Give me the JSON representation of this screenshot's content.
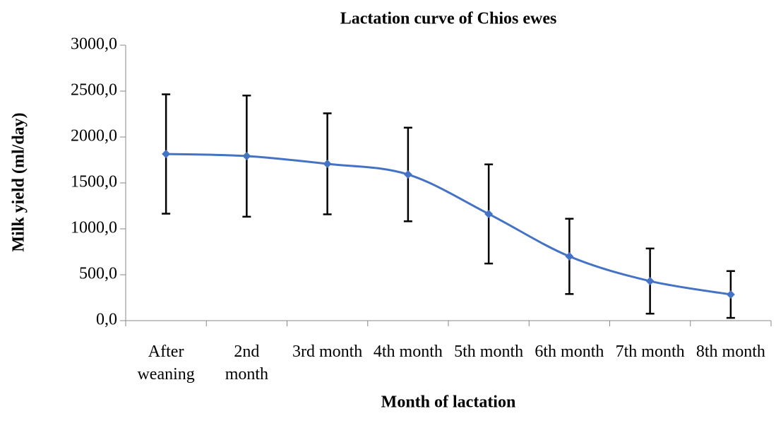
{
  "chart_data": {
    "type": "line",
    "title": "Lactation curve of Chios ewes",
    "x_label": "Month of lactation",
    "y_label": "Milk yield (ml/day)",
    "categories": [
      "After weaning",
      "2nd month",
      "3rd month",
      "4th month",
      "5th month",
      "6th month",
      "7th month",
      "8th month"
    ],
    "series": [
      {
        "name": "Milk yield",
        "color": "#4472c4",
        "values": [
          1815,
          1792,
          1708,
          1592,
          1162,
          700,
          431,
          285
        ],
        "errors": [
          650,
          660,
          550,
          510,
          540,
          410,
          355,
          255
        ]
      }
    ],
    "ylim": [
      0,
      3000
    ],
    "yticks": [
      {
        "value": 0,
        "label": "0,0"
      },
      {
        "value": 500,
        "label": "500,0"
      },
      {
        "value": 1000,
        "label": "1000,0"
      },
      {
        "value": 1500,
        "label": "1500,0"
      },
      {
        "value": 2000,
        "label": "2000,0"
      },
      {
        "value": 2500,
        "label": "2500,0"
      },
      {
        "value": 3000,
        "label": "3000,0"
      }
    ],
    "grid": false
  }
}
